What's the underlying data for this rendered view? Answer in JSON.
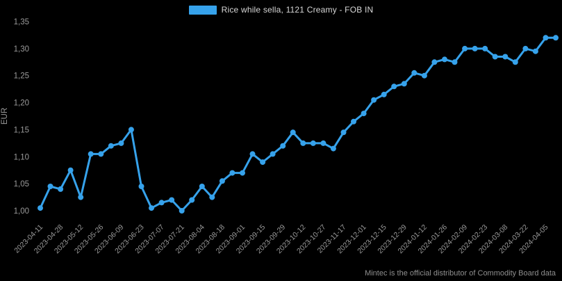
{
  "legend": {
    "label": "Rice while sella, 1121 Creamy - FOB IN",
    "swatch_color": "#36a2eb"
  },
  "footer": {
    "text": "Mintec is the official distributor of Commodity Board data"
  },
  "colors": {
    "background": "#000000",
    "line": "#36a2eb",
    "tick_text": "#9a9a9a",
    "legend_text": "#d8d8d8",
    "footer_text": "#8f8f8f"
  },
  "chart_data": {
    "type": "line",
    "title": "",
    "ylabel": "EUR",
    "xlabel": "",
    "grid": false,
    "legend_position": "top",
    "marker": "circle",
    "ylim": [
      1.0,
      1.36
    ],
    "y_ticks": [
      "1,00",
      "1,05",
      "1,10",
      "1,15",
      "1,20",
      "1,25",
      "1,30",
      "1,35"
    ],
    "x_tick_labels": [
      "2023-04-11",
      "2023-04-28",
      "2023-05-12",
      "2023-05-26",
      "2023-06-09",
      "2023-06-23",
      "2023-07-07",
      "2023-07-21",
      "2023-08-04",
      "2023-08-18",
      "2023-09-01",
      "2023-09-15",
      "2023-09-29",
      "2023-10-12",
      "2023-10-27",
      "2023-11-17",
      "2023-12-01",
      "2023-12-15",
      "2023-12-29",
      "2024-01-12",
      "2024-01-26",
      "2024-02-09",
      "2024-02-23",
      "2024-03-08",
      "2024-03-22",
      "2024-04-05"
    ],
    "points_per_tick": 2,
    "series": [
      {
        "name": "Rice while sella, 1121 Creamy - FOB IN",
        "color": "#36a2eb",
        "values": [
          1.005,
          1.045,
          1.04,
          1.075,
          1.025,
          1.105,
          1.105,
          1.12,
          1.125,
          1.15,
          1.045,
          1.005,
          1.015,
          1.02,
          1.0,
          1.02,
          1.045,
          1.025,
          1.055,
          1.07,
          1.07,
          1.105,
          1.09,
          1.105,
          1.12,
          1.145,
          1.125,
          1.125,
          1.125,
          1.115,
          1.145,
          1.165,
          1.18,
          1.205,
          1.215,
          1.23,
          1.235,
          1.255,
          1.25,
          1.275,
          1.28,
          1.275,
          1.3,
          1.3,
          1.3,
          1.285,
          1.285,
          1.275,
          1.3,
          1.295,
          1.32,
          1.32
        ]
      }
    ]
  }
}
